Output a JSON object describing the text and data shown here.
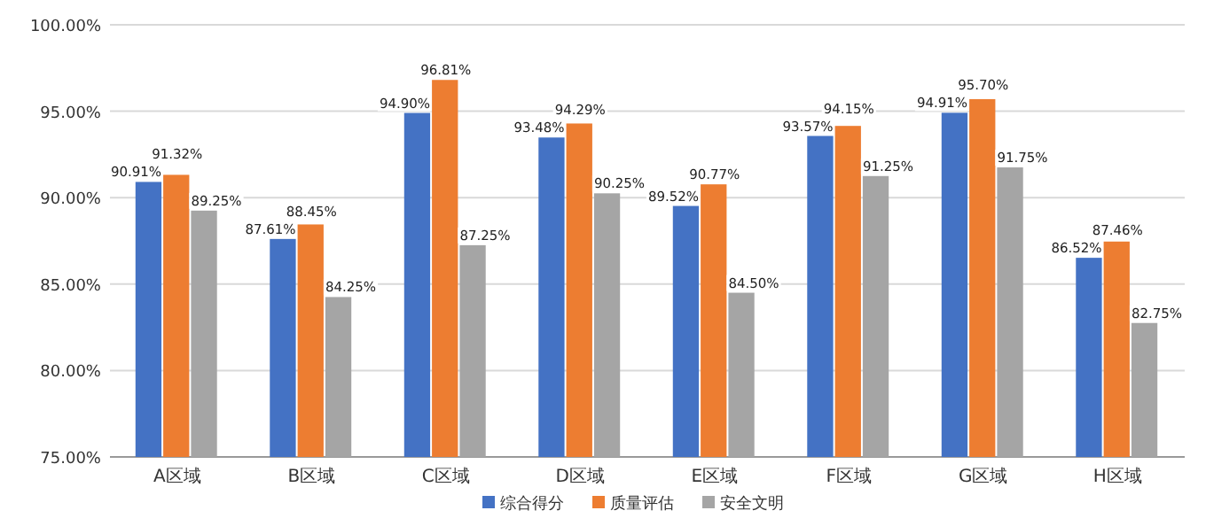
{
  "chart_data": {
    "type": "bar",
    "categories": [
      "A区域",
      "B区域",
      "C区域",
      "D区域",
      "E区域",
      "F区域",
      "G区域",
      "H区域"
    ],
    "series": [
      {
        "name": "综合得分",
        "color": "#4472c4",
        "values": [
          90.91,
          87.61,
          94.9,
          93.48,
          89.52,
          93.57,
          94.91,
          86.52
        ],
        "value_labels": [
          "90.91%",
          "87.61%",
          "94.90%",
          "93.48%",
          "89.52%",
          "93.57%",
          "94.91%",
          "86.52%"
        ]
      },
      {
        "name": "质量评估",
        "color": "#ed7d31",
        "values": [
          91.32,
          88.45,
          96.81,
          94.29,
          90.77,
          94.15,
          95.7,
          87.46
        ],
        "value_labels": [
          "91.32%",
          "88.45%",
          "96.81%",
          "94.29%",
          "90.77%",
          "94.15%",
          "95.70%",
          "87.46%"
        ]
      },
      {
        "name": "安全文明",
        "color": "#a5a5a5",
        "values": [
          89.25,
          84.25,
          87.25,
          90.25,
          84.5,
          91.25,
          91.75,
          82.75
        ],
        "value_labels": [
          "89.25%",
          "84.25%",
          "87.25%",
          "90.25%",
          "84.50%",
          "91.25%",
          "91.75%",
          "82.75%"
        ]
      }
    ],
    "ylim": [
      75,
      100
    ],
    "yticks": [
      {
        "value": 75,
        "label": "75.00%"
      },
      {
        "value": 80,
        "label": "80.00%"
      },
      {
        "value": 85,
        "label": "85.00%"
      },
      {
        "value": 90,
        "label": "90.00%"
      },
      {
        "value": 95,
        "label": "95.00%"
      },
      {
        "value": 100,
        "label": "100.00%"
      }
    ],
    "grid": "y",
    "legend": "bottom"
  }
}
